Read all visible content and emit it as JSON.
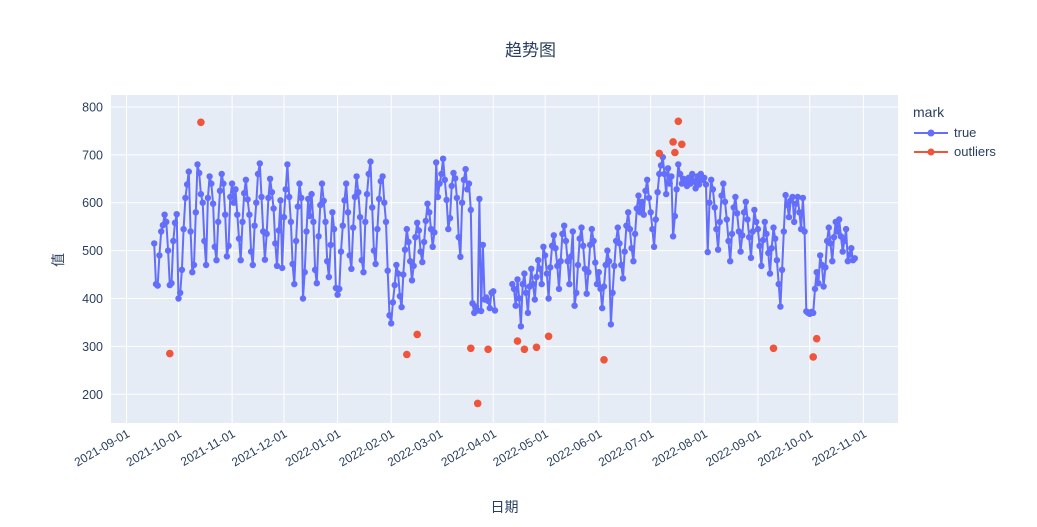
{
  "title": {
    "text": "趋势图"
  },
  "x_axis": {
    "label": "日期",
    "ticks": [
      "2021-09-01",
      "2021-10-01",
      "2021-11-01",
      "2021-12-01",
      "2022-01-01",
      "2022-02-01",
      "2022-03-01",
      "2022-04-01",
      "2022-05-01",
      "2022-06-01",
      "2022-07-01",
      "2022-08-01",
      "2022-09-01",
      "2022-10-01",
      "2022-11-01"
    ]
  },
  "y_axis": {
    "label": "值",
    "ticks": [
      200,
      300,
      400,
      500,
      600,
      700,
      800
    ]
  },
  "legend": {
    "title": "mark",
    "items": [
      {
        "label": "true",
        "color": "#636efa"
      },
      {
        "label": "outliers",
        "color": "#ef553b"
      }
    ]
  },
  "colors": {
    "plot_bg": "#e5ecf6",
    "grid": "#ffffff",
    "text": "#2a3f5f",
    "paper_bg": "#ffffff",
    "series_true": "#636efa",
    "series_outliers": "#ef553b"
  },
  "chart_data": {
    "type": "line",
    "title": "趋势图",
    "xlabel": "日期",
    "ylabel": "值",
    "x_range": [
      "2021-08-23",
      "2022-11-21"
    ],
    "y_range": [
      140,
      825
    ],
    "grid": true,
    "legend_position": "right",
    "series": [
      {
        "name": "true",
        "mode": "lines+markers",
        "color": "#636efa",
        "start_date": "2021-09-17",
        "interval_days": 1,
        "values": [
          515,
          430,
          427,
          490,
          540,
          553,
          575,
          560,
          500,
          428,
          432,
          520,
          558,
          576,
          400,
          412,
          460,
          545,
          610,
          638,
          665,
          540,
          455,
          470,
          580,
          680,
          662,
          618,
          600,
          520,
          470,
          610,
          655,
          640,
          598,
          508,
          480,
          560,
          625,
          660,
          640,
          575,
          488,
          510,
          612,
          640,
          600,
          628,
          575,
          525,
          480,
          560,
          620,
          648,
          607,
          575,
          498,
          470,
          552,
          600,
          660,
          682,
          612,
          540,
          481,
          535,
          610,
          650,
          622,
          588,
          515,
          468,
          542,
          605,
          464,
          570,
          628,
          680,
          612,
          560,
          472,
          430,
          520,
          592,
          640,
          610,
          400,
          455,
          540,
          608,
          572,
          618,
          560,
          460,
          432,
          530,
          595,
          640,
          604,
          560,
          478,
          445,
          512,
          580,
          545,
          422,
          408,
          420,
          498,
          552,
          605,
          640,
          580,
          490,
          462,
          548,
          612,
          655,
          622,
          570,
          480,
          455,
          560,
          618,
          660,
          686,
          590,
          500,
          472,
          545,
          608,
          645,
          655,
          600,
          560,
          458,
          365,
          348,
          392,
          428,
          470,
          452,
          405,
          382,
          450,
          502,
          545,
          518,
          478,
          438,
          468,
          528,
          558,
          542,
          498,
          476,
          518,
          562,
          598,
          580,
          545,
          508,
          538,
          684,
          612,
          640,
          660,
          692,
          648,
          606,
          545,
          568,
          635,
          662,
          651,
          610,
          528,
          487,
          600,
          648,
          670,
          628,
          640,
          585,
          390,
          370,
          383,
          375,
          608,
          374,
          512,
          398,
          402,
          395,
          380,
          412,
          415,
          375,
          null,
          null,
          null,
          null,
          null,
          null,
          null,
          null,
          null,
          430,
          420,
          385,
          440,
          400,
          342,
          430,
          452,
          412,
          370,
          425,
          462,
          430,
          398,
          445,
          480,
          462,
          430,
          508,
          490,
          452,
          400,
          465,
          510,
          532,
          505,
          468,
          420,
          478,
          535,
          552,
          520,
          478,
          430,
          488,
          540,
          385,
          412,
          470,
          525,
          548,
          510,
          462,
          410,
          455,
          512,
          545,
          520,
          475,
          430,
          455,
          420,
          380,
          425,
          470,
          500,
          478,
          346,
          412,
          468,
          520,
          548,
          515,
          470,
          442,
          498,
          552,
          580,
          545,
          505,
          478,
          535,
          588,
          615,
          580,
          602,
          575,
          625,
          648,
          610,
          580,
          545,
          508,
          565,
          622,
          660,
          678,
          695,
          660,
          618,
          672,
          640,
          655,
          530,
          572,
          628,
          680,
          660,
          640,
          650,
          645,
          635,
          652,
          640,
          660,
          645,
          630,
          655,
          638,
          660,
          648,
          652,
          638,
          497,
          600,
          648,
          628,
          590,
          545,
          502,
          560,
          615,
          640,
          602,
          565,
          520,
          478,
          535,
          590,
          612,
          578,
          540,
          498,
          532,
          580,
          602,
          565,
          528,
          485,
          540,
          585,
          560,
          545,
          510,
          468,
          522,
          560,
          535,
          495,
          452,
          505,
          548,
          525,
          480,
          430,
          383,
          460,
          540,
          616,
          595,
          570,
          605,
          612,
          560,
          598,
          612,
          580,
          545,
          610,
          540,
          373,
          370,
          368,
          372,
          370,
          420,
          455,
          432,
          490,
          470,
          425,
          465,
          520,
          548,
          515,
          478,
          528,
          560,
          540,
          565,
          530,
          498,
          520,
          545,
          478,
          492,
          505,
          480,
          484
        ]
      },
      {
        "name": "outliers",
        "mode": "markers",
        "color": "#ef553b",
        "points": [
          [
            "2021-09-26",
            285
          ],
          [
            "2021-10-14",
            768
          ],
          [
            "2022-02-10",
            283
          ],
          [
            "2022-02-16",
            325
          ],
          [
            "2022-03-19",
            296
          ],
          [
            "2022-03-23",
            181
          ],
          [
            "2022-03-29",
            294
          ],
          [
            "2022-04-15",
            311
          ],
          [
            "2022-04-19",
            294
          ],
          [
            "2022-04-26",
            298
          ],
          [
            "2022-05-03",
            321
          ],
          [
            "2022-06-04",
            272
          ],
          [
            "2022-07-06",
            703
          ],
          [
            "2022-07-14",
            727
          ],
          [
            "2022-07-15",
            705
          ],
          [
            "2022-07-17",
            770
          ],
          [
            "2022-07-19",
            722
          ],
          [
            "2022-09-10",
            296
          ],
          [
            "2022-10-03",
            278
          ],
          [
            "2022-10-05",
            316
          ]
        ]
      }
    ]
  }
}
